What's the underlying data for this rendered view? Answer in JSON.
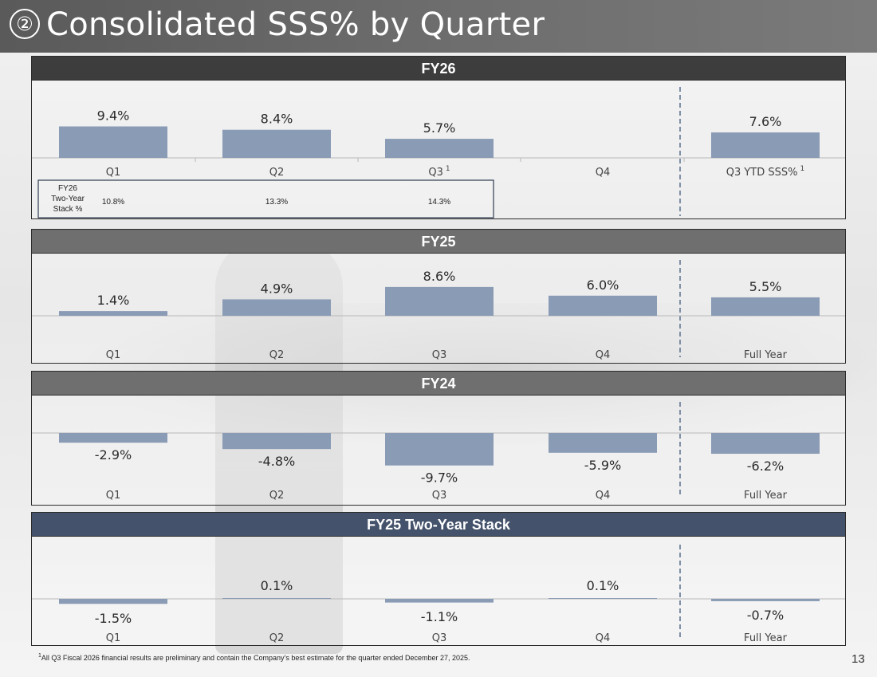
{
  "header": {
    "number": "②",
    "title": "Consolidated SSS% by Quarter"
  },
  "colors": {
    "bar": "#8a9bb5",
    "divider": "#7f8ea6",
    "fy26_header": "#3d3d3d",
    "fy25_header": "#6f6f6f",
    "fy24_header": "#6f6f6f",
    "stack_header": "#44536b"
  },
  "chart_data": [
    {
      "type": "bar",
      "title": "FY26",
      "categories": [
        "Q1",
        "Q2",
        "Q3",
        "Q4",
        "Q3 YTD SSS%"
      ],
      "category_superscripts": [
        "",
        "",
        "1",
        "",
        "1"
      ],
      "values": [
        9.4,
        8.4,
        5.7,
        null,
        7.6
      ],
      "value_labels": [
        "9.4%",
        "8.4%",
        "5.7%",
        "",
        "7.6%"
      ],
      "ylim": [
        0,
        11
      ],
      "two_year_stack": {
        "label": [
          "FY26",
          "Two-Year",
          "Stack %"
        ],
        "values": [
          "10.8%",
          "13.3%",
          "14.3%"
        ]
      }
    },
    {
      "type": "bar",
      "title": "FY25",
      "categories": [
        "Q1",
        "Q2",
        "Q3",
        "Q4",
        "Full Year"
      ],
      "values": [
        1.4,
        4.9,
        8.6,
        6.0,
        5.5
      ],
      "value_labels": [
        "1.4%",
        "4.9%",
        "8.6%",
        "6.0%",
        "5.5%"
      ],
      "ylim": [
        0,
        11
      ]
    },
    {
      "type": "bar",
      "title": "FY24",
      "categories": [
        "Q1",
        "Q2",
        "Q3",
        "Q4",
        "Full Year"
      ],
      "values": [
        -2.9,
        -4.8,
        -9.7,
        -5.9,
        -6.2
      ],
      "value_labels": [
        "-2.9%",
        "-4.8%",
        "-9.7%",
        "-5.9%",
        "-6.2%"
      ],
      "ylim": [
        -11,
        0
      ]
    },
    {
      "type": "bar",
      "title": "FY25 Two-Year Stack",
      "categories": [
        "Q1",
        "Q2",
        "Q3",
        "Q4",
        "Full Year"
      ],
      "values": [
        -1.5,
        0.1,
        -1.1,
        0.1,
        -0.7
      ],
      "value_labels": [
        "-1.5%",
        "0.1%",
        "-1.1%",
        "0.1%",
        "-0.7%"
      ],
      "ylim": [
        -11,
        11
      ]
    }
  ],
  "footnote": {
    "marker": "1",
    "text": "All Q3 Fiscal 2026 financial results are preliminary and contain the Company’s best estimate for the quarter ended December 27, 2025."
  },
  "page_number": "13"
}
